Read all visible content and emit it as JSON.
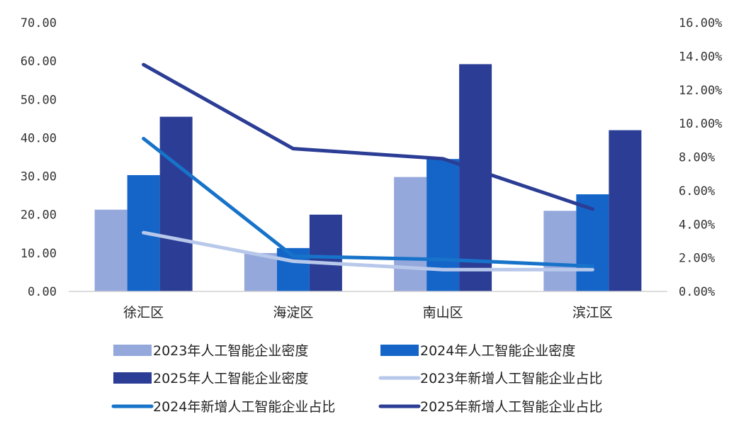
{
  "chart_data": {
    "type": "bar",
    "categories": [
      "徐汇区",
      "海淀区",
      "南山区",
      "滨江区"
    ],
    "bar_series": [
      {
        "name": "2023年人工智能企业密度",
        "values": [
          21.3,
          10.0,
          29.8,
          21.0
        ],
        "color": "#94a8dc"
      },
      {
        "name": "2024年人工智能企业密度",
        "values": [
          30.3,
          11.3,
          34.5,
          25.3
        ],
        "color": "#1565c8"
      },
      {
        "name": "2025年人工智能企业密度",
        "values": [
          45.5,
          20.0,
          59.2,
          42.0
        ],
        "color": "#2b3d95"
      }
    ],
    "line_series": [
      {
        "name": "2023年新增人工智能企业占比",
        "values": [
          3.5,
          1.8,
          1.3,
          1.3
        ],
        "color": "#b8c8ea"
      },
      {
        "name": "2024年新增人工智能企业占比",
        "values": [
          9.1,
          2.1,
          1.9,
          1.5
        ],
        "color": "#1773c9"
      },
      {
        "name": "2025年新增人工智能企业占比",
        "values": [
          13.5,
          8.5,
          7.9,
          4.9
        ],
        "color": "#2b3d95"
      }
    ],
    "y_left": {
      "min": 0,
      "max": 70,
      "step": 10,
      "ticks": [
        "0.00",
        "10.00",
        "20.00",
        "30.00",
        "40.00",
        "50.00",
        "60.00",
        "70.00"
      ]
    },
    "y_right": {
      "min": 0,
      "max": 16,
      "step": 2,
      "ticks": [
        "0.00%",
        "2.00%",
        "4.00%",
        "6.00%",
        "8.00%",
        "10.00%",
        "12.00%",
        "14.00%",
        "16.00%"
      ]
    },
    "grid": false,
    "legend_position": "bottom"
  }
}
